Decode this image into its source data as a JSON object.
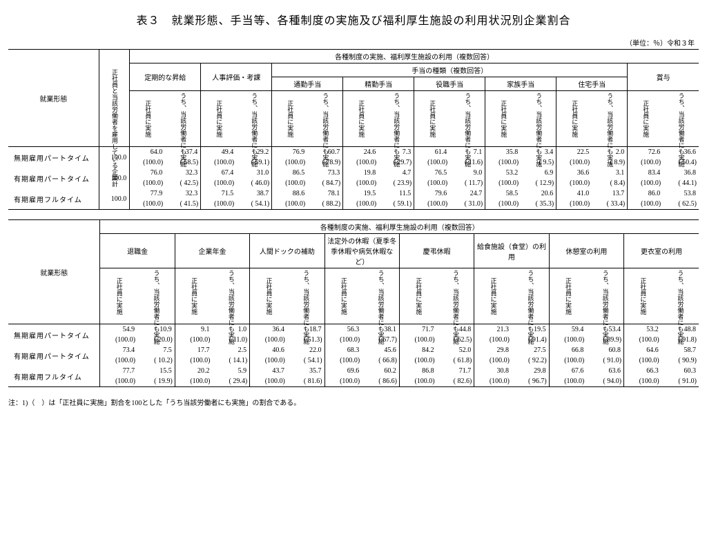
{
  "title": "表３　就業形態、手当等、各種制度の実施及び福利厚生施設の利用状況別企業割合",
  "unit": "（単位：％）令和３年",
  "labels": {
    "employment_form": "就業形態",
    "rowhead": "正社員と当該労働者を雇用している企業計",
    "systems_head": "各種制度の実施、福利厚生施設の利用（複数回答）",
    "allowance_types": "手当の種類（複数回答）",
    "col_a": "正社員に実施",
    "col_b": "うち、当該労働者にも実施"
  },
  "table1": {
    "groups": [
      "定期的な昇給",
      "人事評価・考課",
      "通勤手当",
      "精勤手当",
      "役職手当",
      "家族手当",
      "住宅手当",
      "賞与"
    ],
    "rows": [
      {
        "name": "無期雇用パートタイム",
        "total": "100.0",
        "vals": [
          "64.0",
          "37.4",
          "49.4",
          "29.2",
          "76.9",
          "60.7",
          "24.6",
          "7.3",
          "61.4",
          "7.1",
          "35.8",
          "3.4",
          "22.5",
          "2.0",
          "72.6",
          "36.6"
        ],
        "parens": [
          "(100.0)",
          "( 58.5)",
          "(100.0)",
          "( 59.1)",
          "(100.0)",
          "( 78.9)",
          "(100.0)",
          "( 29.7)",
          "(100.0)",
          "( 11.6)",
          "(100.0)",
          "(  9.5)",
          "(100.0)",
          "(  8.9)",
          "(100.0)",
          "( 50.4)"
        ]
      },
      {
        "name": "有期雇用パートタイム",
        "total": "100.0",
        "vals": [
          "76.0",
          "32.3",
          "67.4",
          "31.0",
          "86.5",
          "73.3",
          "19.8",
          "4.7",
          "76.5",
          "9.0",
          "53.2",
          "6.9",
          "36.6",
          "3.1",
          "83.4",
          "36.8"
        ],
        "parens": [
          "(100.0)",
          "( 42.5)",
          "(100.0)",
          "( 46.0)",
          "(100.0)",
          "( 84.7)",
          "(100.0)",
          "( 23.9)",
          "(100.0)",
          "( 11.7)",
          "(100.0)",
          "( 12.9)",
          "(100.0)",
          "(  8.4)",
          "(100.0)",
          "( 44.1)"
        ]
      },
      {
        "name": "有期雇用フルタイム",
        "total": "100.0",
        "vals": [
          "77.9",
          "32.3",
          "71.5",
          "38.7",
          "88.6",
          "78.1",
          "19.5",
          "11.5",
          "79.6",
          "24.7",
          "58.5",
          "20.6",
          "41.0",
          "13.7",
          "86.0",
          "53.8"
        ],
        "parens": [
          "(100.0)",
          "( 41.5)",
          "(100.0)",
          "( 54.1)",
          "(100.0)",
          "( 88.2)",
          "(100.0)",
          "( 59.1)",
          "(100.0)",
          "( 31.0)",
          "(100.0)",
          "( 35.3)",
          "(100.0)",
          "( 33.4)",
          "(100.0)",
          "( 62.5)"
        ]
      }
    ]
  },
  "table2": {
    "groups": [
      "退職金",
      "企業年金",
      "人間ドックの補助",
      "法定外の休暇（夏季冬季休暇や病気休暇など）",
      "慶弔休暇",
      "給食施設（食堂）の利用",
      "休憩室の利用",
      "更衣室の利用"
    ],
    "rows": [
      {
        "name": "無期雇用パートタイム",
        "vals": [
          "54.9",
          "10.9",
          "9.1",
          "1.0",
          "36.4",
          "18.7",
          "56.3",
          "38.1",
          "71.7",
          "44.8",
          "21.3",
          "19.5",
          "59.4",
          "53.4",
          "53.2",
          "48.8"
        ],
        "parens": [
          "(100.0)",
          "( 20.0)",
          "(100.0)",
          "( 11.0)",
          "(100.0)",
          "( 51.3)",
          "(100.0)",
          "( 67.7)",
          "(100.0)",
          "( 62.5)",
          "(100.0)",
          "( 91.4)",
          "(100.0)",
          "( 89.9)",
          "(100.0)",
          "( 91.8)"
        ]
      },
      {
        "name": "有期雇用パートタイム",
        "vals": [
          "73.4",
          "7.5",
          "17.7",
          "2.5",
          "40.6",
          "22.0",
          "68.3",
          "45.6",
          "84.2",
          "52.0",
          "29.8",
          "27.5",
          "66.8",
          "60.8",
          "64.6",
          "58.7"
        ],
        "parens": [
          "(100.0)",
          "( 10.2)",
          "(100.0)",
          "( 14.1)",
          "(100.0)",
          "( 54.1)",
          "(100.0)",
          "( 66.8)",
          "(100.0)",
          "( 61.8)",
          "(100.0)",
          "( 92.2)",
          "(100.0)",
          "( 91.0)",
          "(100.0)",
          "( 90.9)"
        ]
      },
      {
        "name": "有期雇用フルタイム",
        "vals": [
          "77.7",
          "15.5",
          "20.2",
          "5.9",
          "43.7",
          "35.7",
          "69.6",
          "60.2",
          "86.8",
          "71.7",
          "30.8",
          "29.8",
          "67.6",
          "63.6",
          "66.3",
          "60.3"
        ],
        "parens": [
          "(100.0)",
          "( 19.9)",
          "(100.0)",
          "( 29.4)",
          "(100.0)",
          "( 81.6)",
          "(100.0)",
          "( 86.6)",
          "(100.0)",
          "( 82.6)",
          "(100.0)",
          "( 96.7)",
          "(100.0)",
          "( 94.0)",
          "(100.0)",
          "( 91.0)"
        ]
      }
    ]
  },
  "note": "注：1)（　）は「正社員に実施」割合を100とした「うち当該労働者にも実施」の割合である。"
}
